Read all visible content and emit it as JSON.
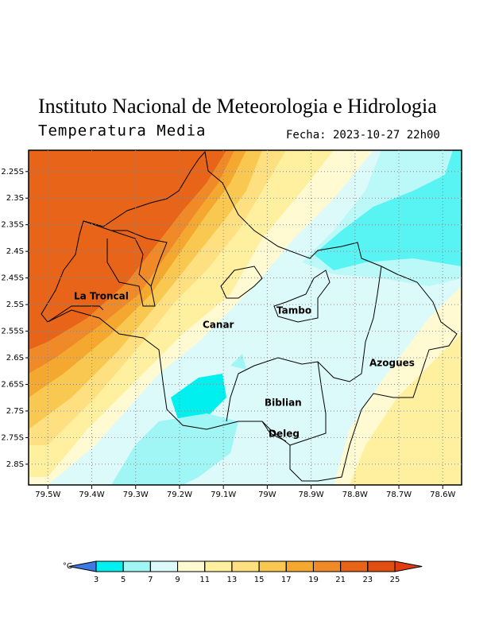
{
  "title": "Instituto Nacional de Meteorologia e Hidrologia",
  "subtitle": "Temperatura Media",
  "date": "Fecha: 2023-10-27 22h00",
  "map": {
    "xlim": [
      -79.544,
      -78.557
    ],
    "ylim": [
      -2.839,
      -2.21
    ],
    "grid": true,
    "xticks": [
      {
        "value": -79.5,
        "label": "79.5W"
      },
      {
        "value": -79.4,
        "label": "79.4W"
      },
      {
        "value": -79.3,
        "label": "79.3W"
      },
      {
        "value": -79.2,
        "label": "79.2W"
      },
      {
        "value": -79.1,
        "label": "79.1W"
      },
      {
        "value": -79.0,
        "label": "79W"
      },
      {
        "value": -78.9,
        "label": "78.9W"
      },
      {
        "value": -78.8,
        "label": "78.8W"
      },
      {
        "value": -78.7,
        "label": "78.7W"
      },
      {
        "value": -78.6,
        "label": "78.6W"
      }
    ],
    "yticks": [
      {
        "value": -2.25,
        "label": "2.25S"
      },
      {
        "value": -2.3,
        "label": "2.3S"
      },
      {
        "value": -2.35,
        "label": "2.35S"
      },
      {
        "value": -2.4,
        "label": "2.4S"
      },
      {
        "value": -2.45,
        "label": "2.45S"
      },
      {
        "value": -2.5,
        "label": "2.5S"
      },
      {
        "value": -2.55,
        "label": "2.55S"
      },
      {
        "value": -2.6,
        "label": "2.6S"
      },
      {
        "value": -2.65,
        "label": "2.65S"
      },
      {
        "value": -2.7,
        "label": "2.7S"
      },
      {
        "value": -2.75,
        "label": "2.75S"
      },
      {
        "value": -2.8,
        "label": "2.8S"
      }
    ],
    "places": [
      "La Troncal",
      "Canar",
      "Tambo",
      "Azogues",
      "Biblian",
      "Deleg"
    ]
  },
  "colorbar": {
    "unit": "°C",
    "levels": [
      3,
      5,
      7,
      9,
      11,
      13,
      15,
      17,
      19,
      21,
      23,
      25
    ],
    "colors": [
      "#3c78e6",
      "#00f0f0",
      "#a0f5f5",
      "#dcfafa",
      "#fffad2",
      "#fff0a0",
      "#ffe080",
      "#f8c850",
      "#f5a830",
      "#f08a28",
      "#e86418",
      "#e04e10",
      "#e03c10"
    ]
  }
}
